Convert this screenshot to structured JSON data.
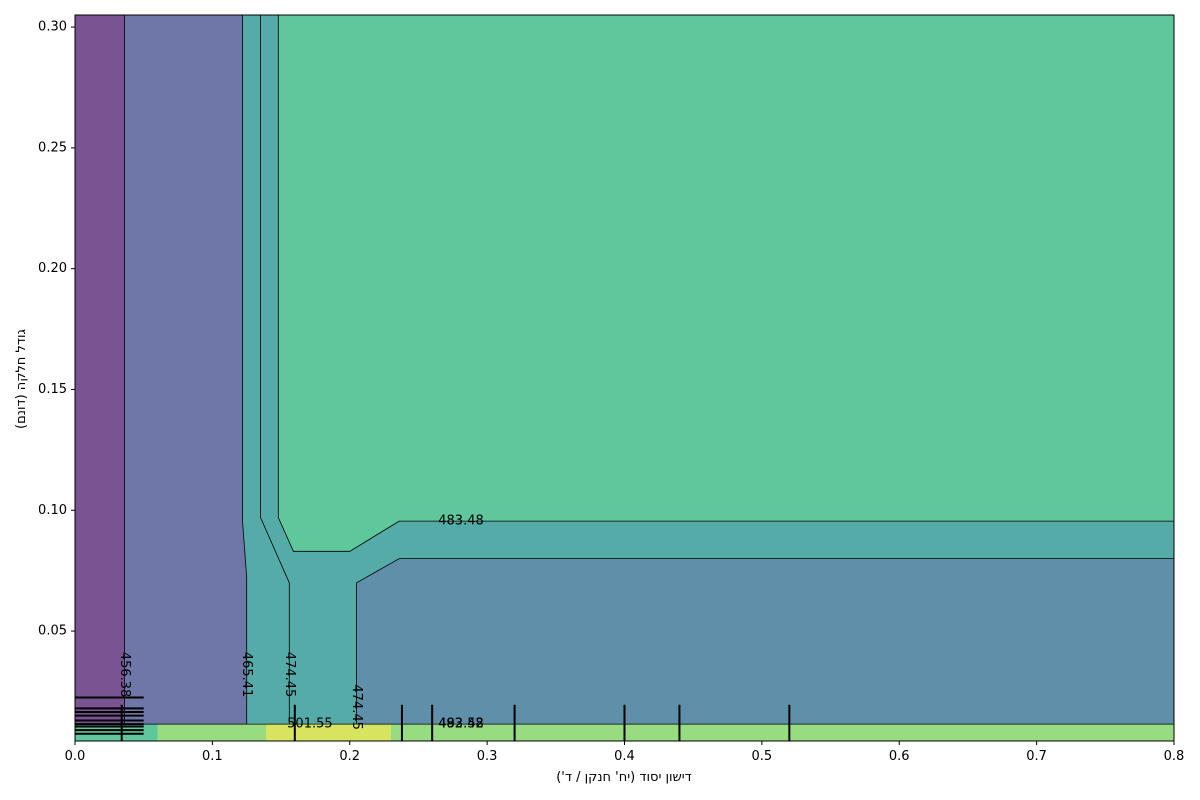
{
  "chart_data": {
    "type": "heatmap",
    "subtype": "filled-contour",
    "title": "",
    "xlabel": "דישון יסוד (יח' חנקן / ד')",
    "ylabel": "גודל חלקה (דונם)",
    "xlim": [
      0.0,
      0.8
    ],
    "ylim": [
      0.0045,
      0.305
    ],
    "x_ticks": [
      0.0,
      0.1,
      0.2,
      0.3,
      0.4,
      0.5,
      0.6,
      0.7,
      0.8
    ],
    "x_tick_labels": [
      "0.0",
      "0.1",
      "0.2",
      "0.3",
      "0.4",
      "0.5",
      "0.6",
      "0.7",
      "0.8"
    ],
    "y_ticks": [
      0.05,
      0.1,
      0.15,
      0.2,
      0.25,
      0.3
    ],
    "y_tick_labels": [
      "0.05",
      "0.10",
      "0.15",
      "0.20",
      "0.25",
      "0.30"
    ],
    "grid": false,
    "colormap": "viridis",
    "colors": {
      "level_1": "#7a5393",
      "level_2": "#6f76a8",
      "level_3": "#5f8fa9",
      "level_4": "#55aba7",
      "level_5": "#60c69b",
      "level_6": "#98dc82",
      "level_7": "#d7e45f"
    },
    "regions": [
      {
        "level": "level_1",
        "points": [
          [
            0.0,
            0.305
          ],
          [
            0.036,
            0.305
          ],
          [
            0.036,
            0.0115
          ],
          [
            0.0,
            0.0115
          ]
        ]
      },
      {
        "level": "level_2",
        "points": [
          [
            0.036,
            0.305
          ],
          [
            0.122,
            0.305
          ],
          [
            0.122,
            0.095
          ],
          [
            0.125,
            0.072
          ],
          [
            0.125,
            0.0115
          ],
          [
            0.036,
            0.0115
          ]
        ]
      },
      {
        "level": "level_3",
        "points": [
          [
            0.205,
            0.07
          ],
          [
            0.236,
            0.08
          ],
          [
            0.8,
            0.08
          ],
          [
            0.8,
            0.0115
          ],
          [
            0.205,
            0.0115
          ]
        ]
      },
      {
        "level": "level_5",
        "points": [
          [
            0.148,
            0.305
          ],
          [
            0.8,
            0.305
          ],
          [
            0.8,
            0.0955
          ],
          [
            0.236,
            0.0955
          ],
          [
            0.2,
            0.083
          ],
          [
            0.159,
            0.083
          ],
          [
            0.148,
            0.097
          ]
        ]
      },
      {
        "level": "level_6",
        "points": [
          [
            0.06,
            0.0115
          ],
          [
            0.8,
            0.0115
          ],
          [
            0.8,
            0.0045
          ],
          [
            0.06,
            0.0045
          ]
        ]
      },
      {
        "level": "level_5",
        "points": [
          [
            0.0,
            0.0115
          ],
          [
            0.06,
            0.0115
          ],
          [
            0.06,
            0.0045
          ],
          [
            0.0,
            0.0045
          ]
        ]
      },
      {
        "level": "level_7",
        "points": [
          [
            0.139,
            0.0115
          ],
          [
            0.23,
            0.0115
          ],
          [
            0.23,
            0.0045
          ],
          [
            0.139,
            0.0045
          ]
        ]
      }
    ],
    "contour_lines": [
      {
        "value": 456.38,
        "points": [
          [
            0.036,
            0.305
          ],
          [
            0.036,
            0.0115
          ]
        ]
      },
      {
        "value": 465.41,
        "points": [
          [
            0.122,
            0.305
          ],
          [
            0.122,
            0.095
          ],
          [
            0.125,
            0.072
          ],
          [
            0.125,
            0.0115
          ]
        ]
      },
      {
        "value": 474.45,
        "points": [
          [
            0.135,
            0.305
          ],
          [
            0.135,
            0.097
          ],
          [
            0.156,
            0.07
          ],
          [
            0.156,
            0.0115
          ]
        ]
      },
      {
        "value": 474.45,
        "points": [
          [
            0.205,
            0.0115
          ],
          [
            0.205,
            0.07
          ],
          [
            0.236,
            0.08
          ],
          [
            0.8,
            0.08
          ]
        ]
      },
      {
        "value": 483.48,
        "points": [
          [
            0.148,
            0.305
          ],
          [
            0.148,
            0.097
          ],
          [
            0.159,
            0.083
          ],
          [
            0.2,
            0.083
          ],
          [
            0.236,
            0.0955
          ],
          [
            0.8,
            0.0955
          ]
        ]
      },
      {
        "value": 501.55,
        "points": [
          [
            0.0,
            0.0115
          ],
          [
            0.8,
            0.0115
          ]
        ]
      }
    ],
    "contour_labels": [
      {
        "text": "456.38",
        "x": 0.036,
        "y": 0.032,
        "rotate": 90
      },
      {
        "text": "465.41",
        "x": 0.125,
        "y": 0.032,
        "rotate": 90
      },
      {
        "text": "474.45",
        "x": 0.156,
        "y": 0.032,
        "rotate": 90
      },
      {
        "text": "474.45",
        "x": 0.205,
        "y": 0.0185,
        "rotate": 90
      },
      {
        "text": "483.48",
        "x": 0.281,
        "y": 0.0955,
        "rotate": 0
      },
      {
        "text": "501.55",
        "x": 0.171,
        "y": 0.0115,
        "rotate": 0
      },
      {
        "text": "492.52",
        "x": 0.281,
        "y": 0.0115,
        "rotate": 0
      },
      {
        "text": "483.48",
        "x": 0.281,
        "y": 0.0115,
        "rotate": 0
      }
    ],
    "marker_lines_vertical": {
      "x": [
        0.034,
        0.16,
        0.238,
        0.26,
        0.32,
        0.4,
        0.44,
        0.52
      ],
      "y_from": 0.0045,
      "y_to": 0.0195
    },
    "marker_lines_horizontal": {
      "y": [
        0.0075,
        0.009,
        0.0105,
        0.0115,
        0.013,
        0.015,
        0.0165,
        0.018,
        0.0225
      ],
      "x_from": 0.0,
      "x_to": 0.05
    }
  }
}
